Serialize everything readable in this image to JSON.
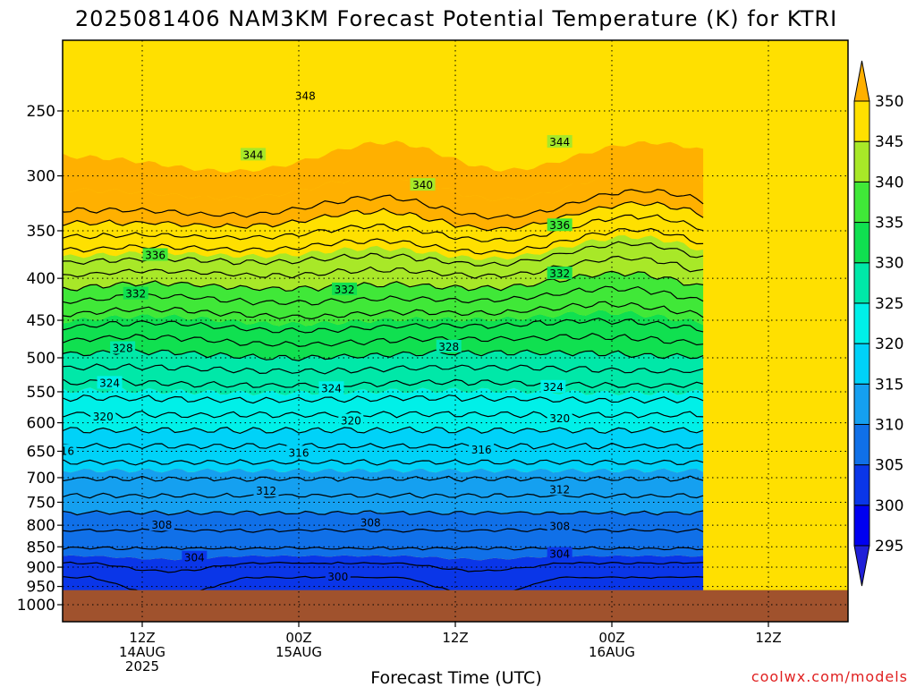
{
  "chart_data": {
    "type": "heatmap",
    "title": "2025081406 NAM3KM Forecast Potential Temperature (K) for KTRI",
    "xlabel": "Forecast Time (UTC)",
    "ylabel": "",
    "credit": "coolwx.com/models",
    "y_axis": {
      "log_scale": true,
      "range": [
        1000,
        200
      ],
      "ticks": [
        250,
        300,
        350,
        400,
        450,
        500,
        550,
        600,
        650,
        700,
        750,
        800,
        850,
        900,
        950,
        1000
      ]
    },
    "x_axis": {
      "range_hours": [
        6,
        54
      ],
      "ticks": [
        {
          "hour": 12,
          "lines": [
            "12Z",
            "14AUG",
            "2025"
          ]
        },
        {
          "hour": 24,
          "lines": [
            "00Z",
            "15AUG"
          ]
        },
        {
          "hour": 36,
          "lines": [
            "12Z"
          ]
        },
        {
          "hour": 48,
          "lines": [
            "00Z",
            "16AUG"
          ]
        },
        {
          "hour": 60,
          "lines": [
            "12Z"
          ]
        }
      ]
    },
    "grid": true,
    "surface_pressure_hpa": 960,
    "colorbar": {
      "ticks": [
        295,
        300,
        305,
        310,
        315,
        320,
        325,
        330,
        335,
        340,
        345,
        350
      ],
      "bands": [
        {
          "min": 290,
          "max": 295,
          "color": "#2020d8"
        },
        {
          "min": 295,
          "max": 300,
          "color": "#0000f0"
        },
        {
          "min": 300,
          "max": 305,
          "color": "#0a36e8"
        },
        {
          "min": 305,
          "max": 310,
          "color": "#1070e8"
        },
        {
          "min": 310,
          "max": 315,
          "color": "#15a0f0"
        },
        {
          "min": 315,
          "max": 320,
          "color": "#00d2f8"
        },
        {
          "min": 320,
          "max": 325,
          "color": "#00f0e8"
        },
        {
          "min": 325,
          "max": 330,
          "color": "#00e8a8"
        },
        {
          "min": 330,
          "max": 335,
          "color": "#10e050"
        },
        {
          "min": 335,
          "max": 340,
          "color": "#40e838"
        },
        {
          "min": 340,
          "max": 345,
          "color": "#a8e828"
        },
        {
          "min": 345,
          "max": 350,
          "color": "#ffe000"
        },
        {
          "min": 350,
          "max": 360,
          "color": "#ffb000"
        }
      ]
    },
    "contour_labels": [
      {
        "value": 348,
        "hour": 24.5,
        "pressure": 240
      },
      {
        "value": 344,
        "hour": 20.5,
        "pressure": 283
      },
      {
        "value": 344,
        "hour": 44.0,
        "pressure": 273
      },
      {
        "value": 340,
        "hour": 33.5,
        "pressure": 308
      },
      {
        "value": 336,
        "hour": 13.0,
        "pressure": 375
      },
      {
        "value": 336,
        "hour": 44.0,
        "pressure": 345
      },
      {
        "value": 332,
        "hour": 11.5,
        "pressure": 418
      },
      {
        "value": 332,
        "hour": 27.5,
        "pressure": 413
      },
      {
        "value": 332,
        "hour": 44.0,
        "pressure": 395
      },
      {
        "value": 328,
        "hour": 10.5,
        "pressure": 487
      },
      {
        "value": 328,
        "hour": 35.5,
        "pressure": 485
      },
      {
        "value": 324,
        "hour": 9.5,
        "pressure": 537
      },
      {
        "value": 324,
        "hour": 26.5,
        "pressure": 545
      },
      {
        "value": 324,
        "hour": 43.5,
        "pressure": 543
      },
      {
        "value": 320,
        "hour": 9.0,
        "pressure": 590
      },
      {
        "value": 320,
        "hour": 28.0,
        "pressure": 597
      },
      {
        "value": 320,
        "hour": 44.0,
        "pressure": 593
      },
      {
        "value": 316,
        "hour": 6.0,
        "pressure": 650
      },
      {
        "value": 316,
        "hour": 24.0,
        "pressure": 653
      },
      {
        "value": 316,
        "hour": 38.0,
        "pressure": 648
      },
      {
        "value": 312,
        "hour": 3.0,
        "pressure": 697
      },
      {
        "value": 312,
        "hour": 21.5,
        "pressure": 727
      },
      {
        "value": 312,
        "hour": 44.0,
        "pressure": 724
      },
      {
        "value": 308,
        "hour": 2.0,
        "pressure": 777
      },
      {
        "value": 308,
        "hour": 13.5,
        "pressure": 800
      },
      {
        "value": 308,
        "hour": 29.5,
        "pressure": 795
      },
      {
        "value": 308,
        "hour": 44.0,
        "pressure": 803
      },
      {
        "value": 304,
        "hour": 16.0,
        "pressure": 877
      },
      {
        "value": 304,
        "hour": 44.0,
        "pressure": 868
      },
      {
        "value": 300,
        "hour": 27.0,
        "pressure": 925
      }
    ]
  }
}
